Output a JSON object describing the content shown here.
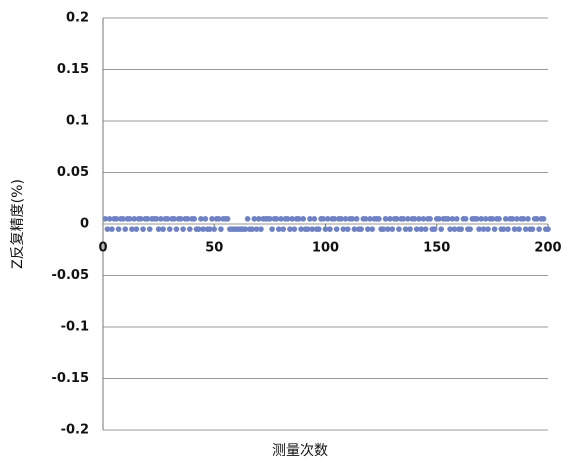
{
  "chart_data": {
    "type": "scatter",
    "x_label": "测量次数",
    "y_label": "Z反复精度(%)",
    "color": "#6f82c4",
    "xlim": [
      0,
      200
    ],
    "xticks": [
      0,
      50,
      100,
      150,
      200
    ],
    "ylim": [
      -0.2,
      0.2
    ],
    "yticks": [
      0.2,
      0.15,
      0.1,
      0.05,
      0,
      -0.05,
      -0.1,
      -0.15,
      -0.2
    ],
    "grid": true,
    "series": [
      {
        "x": [
          1,
          2,
          3,
          4,
          5,
          6,
          7,
          8,
          9,
          10,
          11,
          12,
          13,
          14,
          15,
          16,
          17,
          18,
          19,
          20,
          21,
          22,
          23,
          24,
          25,
          26,
          27,
          28,
          29,
          30,
          31,
          32,
          33,
          34,
          35,
          36,
          37,
          38,
          39,
          40,
          41,
          42,
          43,
          44,
          45,
          46,
          47,
          48,
          49,
          50,
          51,
          52,
          53,
          54,
          55,
          56,
          57,
          58,
          59,
          60,
          61,
          62,
          63,
          64,
          65,
          66,
          67,
          68,
          69,
          70,
          71,
          72,
          73,
          74,
          75,
          76,
          77,
          78,
          79,
          80,
          81,
          82,
          83,
          84,
          85,
          86,
          87,
          88,
          89,
          90,
          91,
          92,
          93,
          94,
          95,
          96,
          97,
          98,
          99,
          100,
          101,
          102,
          103,
          104,
          105,
          106,
          107,
          108,
          109,
          110,
          111,
          112,
          113,
          114,
          115,
          116,
          117,
          118,
          119,
          120,
          121,
          122,
          123,
          124,
          125,
          126,
          127,
          128,
          129,
          130,
          131,
          132,
          133,
          134,
          135,
          136,
          137,
          138,
          139,
          140,
          141,
          142,
          143,
          144,
          145,
          146,
          147,
          148,
          149,
          150,
          151,
          152,
          153,
          154,
          155,
          156,
          157,
          158,
          159,
          160,
          161,
          162,
          163,
          164,
          165,
          166,
          167,
          168,
          169,
          170,
          171,
          172,
          173,
          174,
          175,
          176,
          177,
          178,
          179,
          180,
          181,
          182,
          183,
          184,
          185,
          186,
          187,
          188,
          189,
          190,
          191,
          192,
          193,
          194,
          195,
          196,
          197,
          198,
          199,
          200
        ],
        "values": [
          0.005,
          -0.005,
          0.005,
          -0.005,
          0.005,
          0.005,
          -0.005,
          0.005,
          0.005,
          -0.005,
          0.005,
          0.005,
          -0.005,
          0.005,
          -0.005,
          0.005,
          0.005,
          -0.005,
          0.005,
          0.005,
          -0.005,
          0.005,
          0.005,
          0.005,
          -0.005,
          0.005,
          -0.005,
          0.005,
          0.005,
          -0.005,
          0.005,
          0.005,
          -0.005,
          0.005,
          0.005,
          -0.005,
          0.005,
          0.005,
          -0.005,
          0.005,
          0.005,
          -0.005,
          -0.005,
          0.005,
          -0.005,
          0.005,
          -0.005,
          -0.005,
          0.005,
          -0.005,
          0.005,
          0.005,
          -0.005,
          0.005,
          0.005,
          0.005,
          -0.005,
          -0.005,
          -0.005,
          -0.005,
          -0.005,
          -0.005,
          -0.005,
          -0.005,
          0.005,
          -0.005,
          -0.005,
          0.005,
          -0.005,
          0.005,
          -0.005,
          0.005,
          0.005,
          0.005,
          0.005,
          -0.005,
          0.005,
          0.005,
          -0.005,
          0.005,
          -0.005,
          0.005,
          0.005,
          -0.005,
          0.005,
          -0.005,
          0.005,
          0.005,
          -0.005,
          0.005,
          -0.005,
          -0.005,
          0.005,
          -0.005,
          0.005,
          -0.005,
          -0.005,
          0.005,
          0.005,
          -0.005,
          0.005,
          -0.005,
          0.005,
          0.005,
          -0.005,
          0.005,
          0.005,
          -0.005,
          0.005,
          -0.005,
          0.005,
          0.005,
          -0.005,
          0.005,
          -0.005,
          -0.005,
          0.005,
          0.005,
          -0.005,
          0.005,
          -0.005,
          0.005,
          0.005,
          0.005,
          -0.005,
          -0.005,
          0.005,
          -0.005,
          0.005,
          -0.005,
          0.005,
          0.005,
          -0.005,
          0.005,
          0.005,
          -0.005,
          0.005,
          -0.005,
          0.005,
          0.005,
          -0.005,
          0.005,
          -0.005,
          0.005,
          -0.005,
          0.005,
          0.005,
          -0.005,
          -0.005,
          0.005,
          0.005,
          -0.005,
          0.005,
          0.005,
          0.005,
          -0.005,
          0.005,
          -0.005,
          0.005,
          -0.005,
          -0.005,
          0.005,
          0.005,
          -0.005,
          -0.005,
          0.005,
          0.005,
          0.005,
          -0.005,
          0.005,
          -0.005,
          0.005,
          -0.005,
          0.005,
          0.005,
          -0.005,
          0.005,
          0.005,
          -0.005,
          -0.005,
          0.005,
          -0.005,
          0.005,
          0.005,
          -0.005,
          0.005,
          -0.005,
          0.005,
          0.005,
          -0.005,
          0.005,
          -0.005,
          -0.005,
          0.005,
          0.005,
          -0.005,
          0.005,
          0.005,
          -0.005,
          -0.005
        ]
      }
    ]
  }
}
